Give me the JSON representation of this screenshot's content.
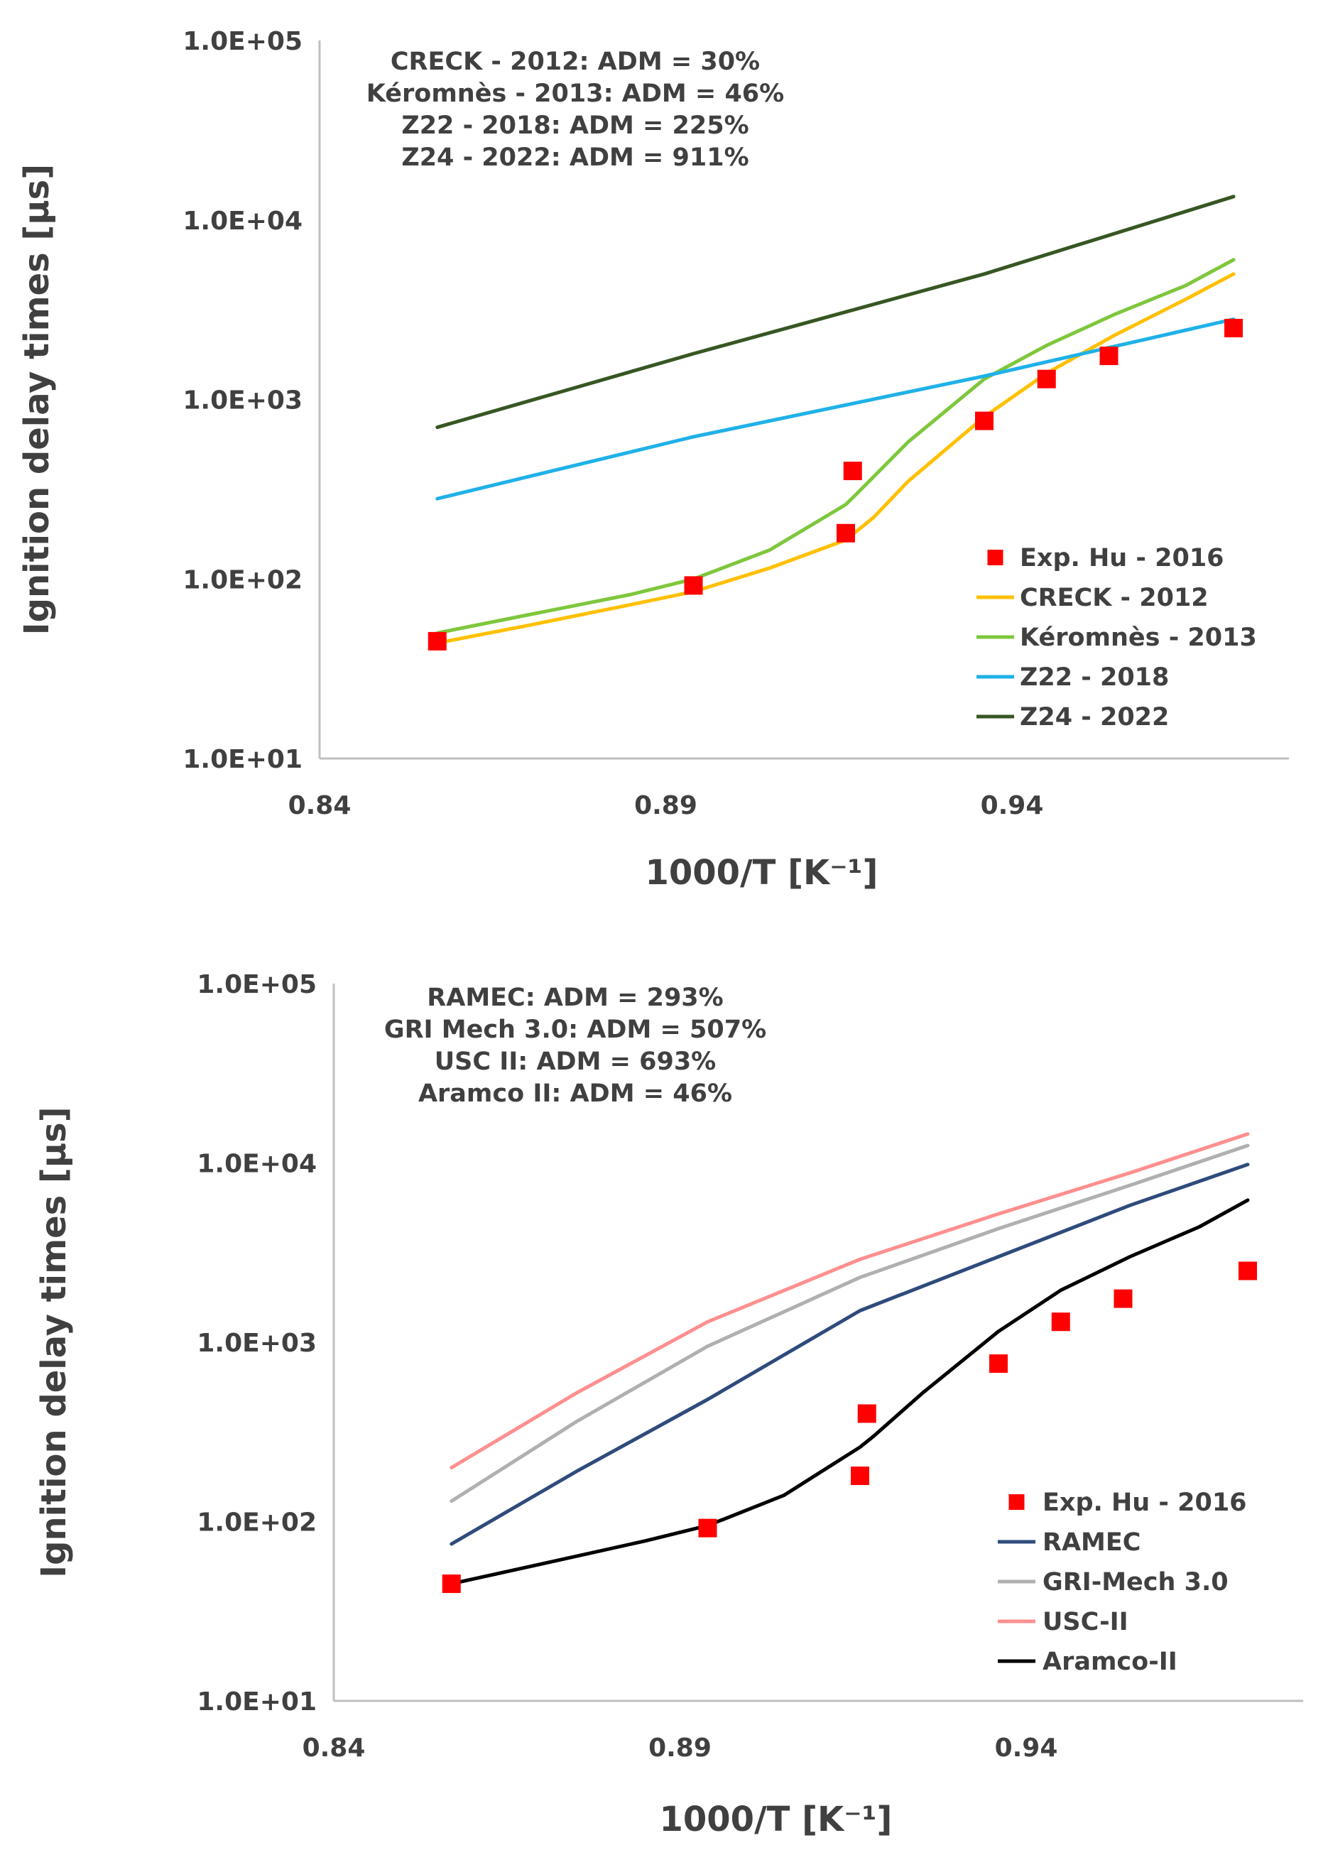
{
  "chart_data": [
    {
      "type": "line",
      "xlabel": "1000/T [K⁻¹]",
      "ylabel": "Ignition delay times [µs]",
      "yscale": "log",
      "xlim": [
        0.84,
        0.98
      ],
      "ylim": [
        10,
        100000
      ],
      "x_ticks": [
        "0.84",
        "0.89",
        "0.94"
      ],
      "x_tick_values": [
        0.84,
        0.89,
        0.94
      ],
      "y_ticks": [
        "1.0E+05",
        "1.0E+04",
        "1.0E+03",
        "1.0E+02",
        "1.0E+01"
      ],
      "y_tick_values": [
        100000,
        10000,
        1000,
        100,
        10
      ],
      "annotations": [
        "CRECK - 2012: ADM = 30%",
        "Kéromnès - 2013: ADM = 46%",
        "Z22 - 2018: ADM = 225%",
        "Z24 - 2022: ADM = 911%"
      ],
      "legend_position": "bottom-right",
      "series": [
        {
          "name": "Exp. Hu - 2016",
          "kind": "scatter",
          "color": "#ff0000",
          "x": [
            0.857,
            0.894,
            0.916,
            0.917,
            0.936,
            0.945,
            0.954,
            0.972
          ],
          "y": [
            45,
            92,
            180,
            400,
            760,
            1300,
            1750,
            2500
          ]
        },
        {
          "name": "CRECK - 2012",
          "kind": "line",
          "color": "#ffc000",
          "x": [
            0.857,
            0.87,
            0.885,
            0.894,
            0.905,
            0.916,
            0.92,
            0.925,
            0.936,
            0.945,
            0.955,
            0.965,
            0.972
          ],
          "y": [
            44,
            55,
            72,
            85,
            115,
            165,
            220,
            350,
            800,
            1400,
            2300,
            3600,
            5000
          ]
        },
        {
          "name": "Kéromnès - 2013",
          "kind": "line",
          "color": "#7ec73c",
          "x": [
            0.857,
            0.87,
            0.885,
            0.894,
            0.905,
            0.916,
            0.918,
            0.925,
            0.936,
            0.945,
            0.955,
            0.965,
            0.972
          ],
          "y": [
            50,
            63,
            82,
            100,
            145,
            260,
            310,
            580,
            1300,
            2000,
            3000,
            4300,
            6000
          ]
        },
        {
          "name": "Z22 - 2018",
          "kind": "line",
          "color": "#1fb1e8",
          "x": [
            0.857,
            0.894,
            0.936,
            0.972
          ],
          "y": [
            280,
            620,
            1350,
            2800
          ]
        },
        {
          "name": "Z24 - 2022",
          "kind": "line",
          "color": "#375623",
          "x": [
            0.857,
            0.894,
            0.936,
            0.972
          ],
          "y": [
            700,
            1800,
            5000,
            13500
          ]
        }
      ]
    },
    {
      "type": "line",
      "xlabel": "1000/T [K⁻¹]",
      "ylabel": "Ignition delay times [µs]",
      "yscale": "log",
      "xlim": [
        0.84,
        0.98
      ],
      "ylim": [
        10,
        100000
      ],
      "x_ticks": [
        "0.84",
        "0.89",
        "0.94"
      ],
      "x_tick_values": [
        0.84,
        0.89,
        0.94
      ],
      "y_ticks": [
        "1.0E+05",
        "1.0E+04",
        "1.0E+03",
        "1.0E+02",
        "1.0E+01"
      ],
      "y_tick_values": [
        100000,
        10000,
        1000,
        100,
        10
      ],
      "annotations": [
        "RAMEC: ADM = 293%",
        "GRI Mech 3.0: ADM = 507%",
        "USC II: ADM = 693%",
        "Aramco II: ADM = 46%"
      ],
      "legend_position": "bottom-right",
      "series": [
        {
          "name": "Exp. Hu - 2016",
          "kind": "scatter",
          "color": "#ff0000",
          "x": [
            0.857,
            0.894,
            0.916,
            0.917,
            0.936,
            0.945,
            0.954,
            0.972
          ],
          "y": [
            45,
            92,
            180,
            400,
            760,
            1300,
            1750,
            2500
          ]
        },
        {
          "name": "RAMEC",
          "kind": "line",
          "color": "#2f4b7c",
          "x": [
            0.857,
            0.875,
            0.894,
            0.916,
            0.936,
            0.955,
            0.972
          ],
          "y": [
            75,
            190,
            480,
            1500,
            3000,
            5800,
            9800
          ]
        },
        {
          "name": "GRI-Mech 3.0",
          "kind": "line",
          "color": "#b0b0b0",
          "x": [
            0.857,
            0.875,
            0.894,
            0.916,
            0.936,
            0.955,
            0.972
          ],
          "y": [
            130,
            360,
            950,
            2300,
            4300,
            7500,
            12500
          ]
        },
        {
          "name": "USC-II",
          "kind": "line",
          "color": "#ff8f8f",
          "x": [
            0.857,
            0.875,
            0.894,
            0.916,
            0.936,
            0.955,
            0.972
          ],
          "y": [
            200,
            520,
            1300,
            2900,
            5200,
            8800,
            14500
          ]
        },
        {
          "name": "Aramco-II",
          "kind": "line",
          "color": "#000000",
          "x": [
            0.857,
            0.87,
            0.885,
            0.894,
            0.905,
            0.916,
            0.918,
            0.925,
            0.936,
            0.945,
            0.955,
            0.965,
            0.972
          ],
          "y": [
            45,
            58,
            78,
            95,
            140,
            260,
            300,
            520,
            1150,
            1950,
            3000,
            4400,
            6200
          ]
        }
      ]
    }
  ]
}
